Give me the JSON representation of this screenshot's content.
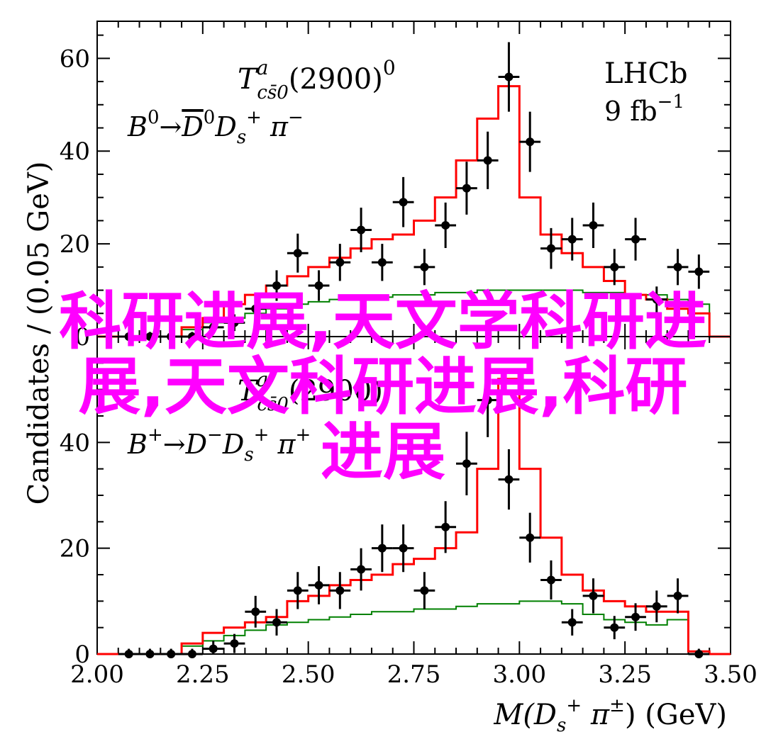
{
  "chart_data": [
    {
      "type": "scatter",
      "panel": "top",
      "xlim": [
        2.0,
        3.5
      ],
      "ylim": [
        0,
        68
      ],
      "yticks": [
        0,
        20,
        40,
        60
      ],
      "ylabel": "Candidates / (0.05 GeV)",
      "title": "T^a_{cs̄0}(2900)^0",
      "decay": "B^0 → D̄^0 D_s^+ π^−",
      "experiment": "LHCb",
      "luminosity": "9 fb^{-1}",
      "colors": {
        "fit": "#ff0000",
        "component": "#008000",
        "data": "#000000"
      },
      "data_points": {
        "x": [
          2.075,
          2.125,
          2.175,
          2.225,
          2.275,
          2.325,
          2.375,
          2.425,
          2.475,
          2.525,
          2.575,
          2.625,
          2.675,
          2.725,
          2.775,
          2.825,
          2.875,
          2.925,
          2.975,
          3.025,
          3.075,
          3.125,
          3.175,
          3.225,
          3.275,
          3.325,
          3.375,
          3.425
        ],
        "y": [
          0,
          0,
          0,
          0,
          2,
          3,
          6,
          11,
          18,
          11,
          16,
          23,
          16,
          29,
          15,
          24,
          32,
          38,
          56,
          42,
          19,
          21,
          24,
          15,
          21,
          8,
          15,
          14
        ],
        "err": [
          1,
          1,
          1,
          1,
          1.5,
          1.8,
          2.5,
          3.3,
          4.2,
          3.3,
          4,
          4.8,
          4,
          5.4,
          3.9,
          4.9,
          5.7,
          6.2,
          7.5,
          6.5,
          4.4,
          4.6,
          4.9,
          3.9,
          4.6,
          2.8,
          3.9,
          3.7
        ]
      },
      "fit": {
        "edges": [
          2.0,
          2.05,
          2.1,
          2.15,
          2.2,
          2.25,
          2.3,
          2.35,
          2.4,
          2.45,
          2.5,
          2.55,
          2.6,
          2.65,
          2.7,
          2.75,
          2.8,
          2.85,
          2.9,
          2.95,
          3.0,
          3.05,
          3.1,
          3.15,
          3.2,
          3.25,
          3.3,
          3.35,
          3.4,
          3.45
        ],
        "values": [
          0,
          0,
          0,
          0,
          2,
          4,
          7,
          9,
          11,
          13,
          15,
          17,
          19,
          21,
          22,
          25,
          30,
          38,
          47,
          54,
          30,
          22,
          18,
          15,
          12,
          9,
          8,
          6,
          5,
          0
        ]
      },
      "component": {
        "edges": [
          2.0,
          2.05,
          2.1,
          2.15,
          2.2,
          2.25,
          2.3,
          2.35,
          2.4,
          2.45,
          2.5,
          2.55,
          2.6,
          2.65,
          2.7,
          2.75,
          2.8,
          2.85,
          2.9,
          2.95,
          3.0,
          3.05,
          3.1,
          3.15,
          3.2,
          3.25,
          3.3,
          3.35,
          3.4,
          3.45
        ],
        "values": [
          0,
          0,
          0,
          0,
          1.5,
          3,
          4,
          5,
          6,
          7,
          7.5,
          8,
          8.5,
          8.5,
          9,
          9,
          9.5,
          9.5,
          10,
          10,
          10,
          10,
          10,
          9.5,
          9.5,
          9,
          9,
          8,
          7,
          0
        ]
      }
    },
    {
      "type": "scatter",
      "panel": "bottom",
      "xlim": [
        2.0,
        3.5
      ],
      "ylim": [
        0,
        60
      ],
      "xticks": [
        2.0,
        2.25,
        2.5,
        2.75,
        3.0,
        3.25,
        3.5
      ],
      "xticklabels": [
        "2.00",
        "2.25",
        "2.50",
        "2.75",
        "3.00",
        "3.25",
        "3.50"
      ],
      "yticks": [
        0,
        20,
        40
      ],
      "xlabel": "M(D_s^+ π^±) (GeV)",
      "title": "T^a_{cs̄0}(2900)",
      "decay": "B^+ → D^− D_s^+ π^+",
      "colors": {
        "fit": "#ff0000",
        "component": "#008000",
        "data": "#000000"
      },
      "data_points": {
        "x": [
          2.075,
          2.125,
          2.175,
          2.225,
          2.275,
          2.325,
          2.375,
          2.425,
          2.475,
          2.525,
          2.575,
          2.625,
          2.675,
          2.725,
          2.775,
          2.825,
          2.875,
          2.925,
          2.975,
          3.025,
          3.075,
          3.125,
          3.175,
          3.225,
          3.275,
          3.325,
          3.375,
          3.425
        ],
        "y": [
          0,
          0,
          0,
          0,
          1,
          2,
          8,
          6,
          12,
          13,
          12,
          16,
          20,
          20,
          12,
          24,
          36,
          48,
          33,
          22,
          14,
          6,
          11,
          5,
          7,
          9,
          11,
          0
        ],
        "err": [
          1,
          1,
          1,
          1,
          1.5,
          1.8,
          3,
          2.5,
          3.5,
          3.6,
          3.5,
          4,
          4.5,
          4.5,
          3.5,
          4.9,
          6,
          7,
          5.7,
          4.7,
          3.7,
          2.5,
          3.3,
          2.2,
          2.6,
          3,
          3.3,
          1
        ]
      },
      "fit": {
        "edges": [
          2.0,
          2.05,
          2.1,
          2.15,
          2.2,
          2.25,
          2.3,
          2.35,
          2.4,
          2.45,
          2.5,
          2.55,
          2.6,
          2.65,
          2.7,
          2.75,
          2.8,
          2.85,
          2.9,
          2.95,
          3.0,
          3.05,
          3.1,
          3.15,
          3.2,
          3.25,
          3.3,
          3.35,
          3.4,
          3.45
        ],
        "values": [
          0,
          0,
          0,
          0,
          2,
          4,
          5,
          6,
          7,
          10,
          11,
          13,
          14,
          15,
          17,
          18,
          20,
          23,
          35,
          52,
          35,
          22,
          15,
          12,
          10,
          9,
          8,
          8,
          0.5,
          0
        ]
      },
      "component": {
        "edges": [
          2.0,
          2.05,
          2.1,
          2.15,
          2.2,
          2.25,
          2.3,
          2.35,
          2.4,
          2.45,
          2.5,
          2.55,
          2.6,
          2.65,
          2.7,
          2.75,
          2.8,
          2.85,
          2.9,
          2.95,
          3.0,
          3.05,
          3.1,
          3.15,
          3.2,
          3.25,
          3.3,
          3.35,
          3.4,
          3.45
        ],
        "values": [
          0,
          0,
          0,
          0,
          1.5,
          2.5,
          3.5,
          4.5,
          5.5,
          6,
          6.5,
          7,
          7.5,
          8,
          8,
          8.5,
          8.5,
          9,
          9.5,
          9.5,
          10,
          10,
          9.5,
          7.5,
          6.5,
          6,
          5.5,
          6.5,
          0.5,
          0
        ]
      }
    }
  ],
  "overlay_text": {
    "line1": "科研进展,天文学科研进",
    "line2": "展,天文科研进展,科研",
    "line3": "进展"
  }
}
